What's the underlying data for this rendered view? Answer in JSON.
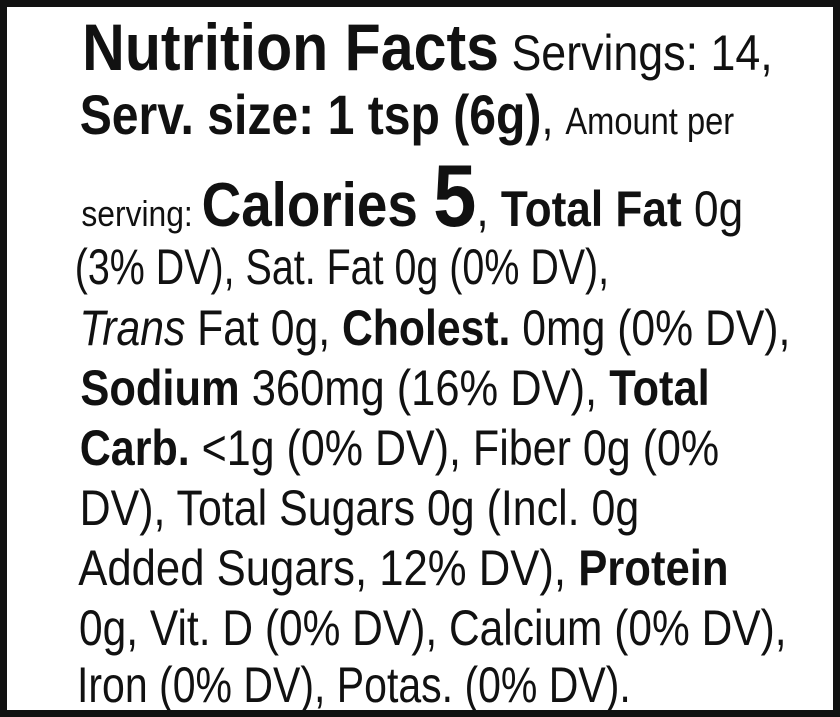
{
  "label": {
    "lines": [
      [
        "Nutrition Facts",
        " Servings: 14,"
      ],
      [
        "Serv. size: 1 tsp (6g)",
        ", ",
        "Amount per"
      ],
      [
        "serving: ",
        "Calories ",
        "5",
        ", ",
        "Total Fat",
        " 0g"
      ],
      [
        "(3% DV), Sat. Fat 0g (0% DV),"
      ],
      [
        "Trans",
        " Fat 0g, ",
        "Cholest.",
        " 0mg (0% DV),"
      ],
      [
        "Sodium",
        " 360mg (16% DV), ",
        "Total"
      ],
      [
        "Carb.",
        " <1g (0% DV), Fiber 0g (0%"
      ],
      [
        "DV), Total Sugars 0g (Incl. 0g"
      ],
      [
        "Added Sugars, 12% DV), ",
        "Protein"
      ],
      [
        "0g, Vit. D (0% DV), Calcium (0% DV),"
      ],
      [
        "Iron (0% DV), Potas. (0% DV)."
      ]
    ]
  }
}
